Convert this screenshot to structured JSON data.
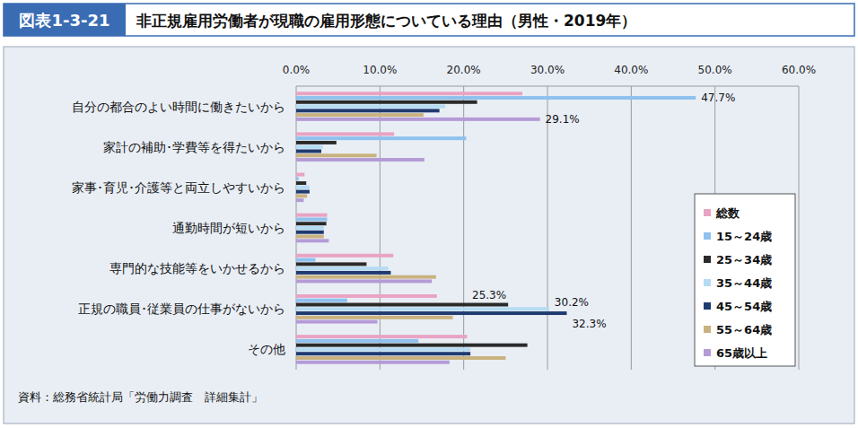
{
  "chart_data": {
    "type": "bar",
    "orientation": "horizontal",
    "figure_number": "図表1-3-21",
    "title": "非正規雇用労働者が現職の雇用形態についている理由（男性・2019年）",
    "source": "資料：総務省統計局「労働力調査　詳細集計」",
    "categories": [
      "自分の都合のよい時間に働きたいから",
      "家計の補助･学費等を得たいから",
      "家事･育児･介護等と両立しやすいから",
      "通勤時間が短いから",
      "専門的な技能等をいかせるから",
      "正規の職員･従業員の仕事がないから",
      "その他"
    ],
    "series": [
      {
        "name": "総数",
        "color": "#e9a3c3",
        "values": [
          27.0,
          11.7,
          1.0,
          3.7,
          11.6,
          16.8,
          20.4
        ]
      },
      {
        "name": "15～24歳",
        "color": "#8ec1ee",
        "values": [
          47.7,
          20.3,
          0.3,
          3.7,
          2.3,
          6.1,
          14.6
        ],
        "value_labels": [
          "47.7%",
          null,
          null,
          null,
          null,
          null,
          null
        ]
      },
      {
        "name": "25～34歳",
        "color": "#2a2a2a",
        "values": [
          21.6,
          4.8,
          1.2,
          3.6,
          8.4,
          25.3,
          27.6
        ],
        "value_labels": [
          null,
          null,
          null,
          null,
          null,
          "25.3%",
          null
        ]
      },
      {
        "name": "35～44歳",
        "color": "#b5dcf3",
        "values": [
          17.8,
          3.2,
          1.6,
          3.3,
          11.0,
          30.2,
          20.8
        ],
        "value_labels": [
          null,
          null,
          null,
          null,
          null,
          "30.2%",
          null
        ]
      },
      {
        "name": "45～54歳",
        "color": "#1f3b70",
        "values": [
          17.1,
          3.0,
          1.6,
          3.3,
          11.3,
          32.3,
          20.8
        ],
        "value_labels": [
          null,
          null,
          null,
          null,
          null,
          "32.3%",
          null
        ]
      },
      {
        "name": "55～64歳",
        "color": "#c9b27f",
        "values": [
          15.2,
          9.6,
          1.3,
          3.3,
          16.7,
          18.7,
          25.0
        ]
      },
      {
        "name": "65歳以上",
        "color": "#b49bd6",
        "values": [
          29.1,
          15.3,
          0.9,
          3.9,
          16.2,
          9.7,
          18.3
        ],
        "value_labels": [
          "29.1%",
          null,
          null,
          null,
          null,
          null,
          null
        ]
      }
    ],
    "xlim": [
      0,
      60
    ],
    "xticks": [
      {
        "value": 0,
        "label": "0.0%"
      },
      {
        "value": 10,
        "label": "10.0%"
      },
      {
        "value": 20,
        "label": "20.0%"
      },
      {
        "value": 30,
        "label": "30.0%"
      },
      {
        "value": 40,
        "label": "40.0%"
      },
      {
        "value": 50,
        "label": "50.0%"
      },
      {
        "value": 60,
        "label": "60.0%"
      }
    ],
    "grid": true,
    "legend": "lower right"
  }
}
